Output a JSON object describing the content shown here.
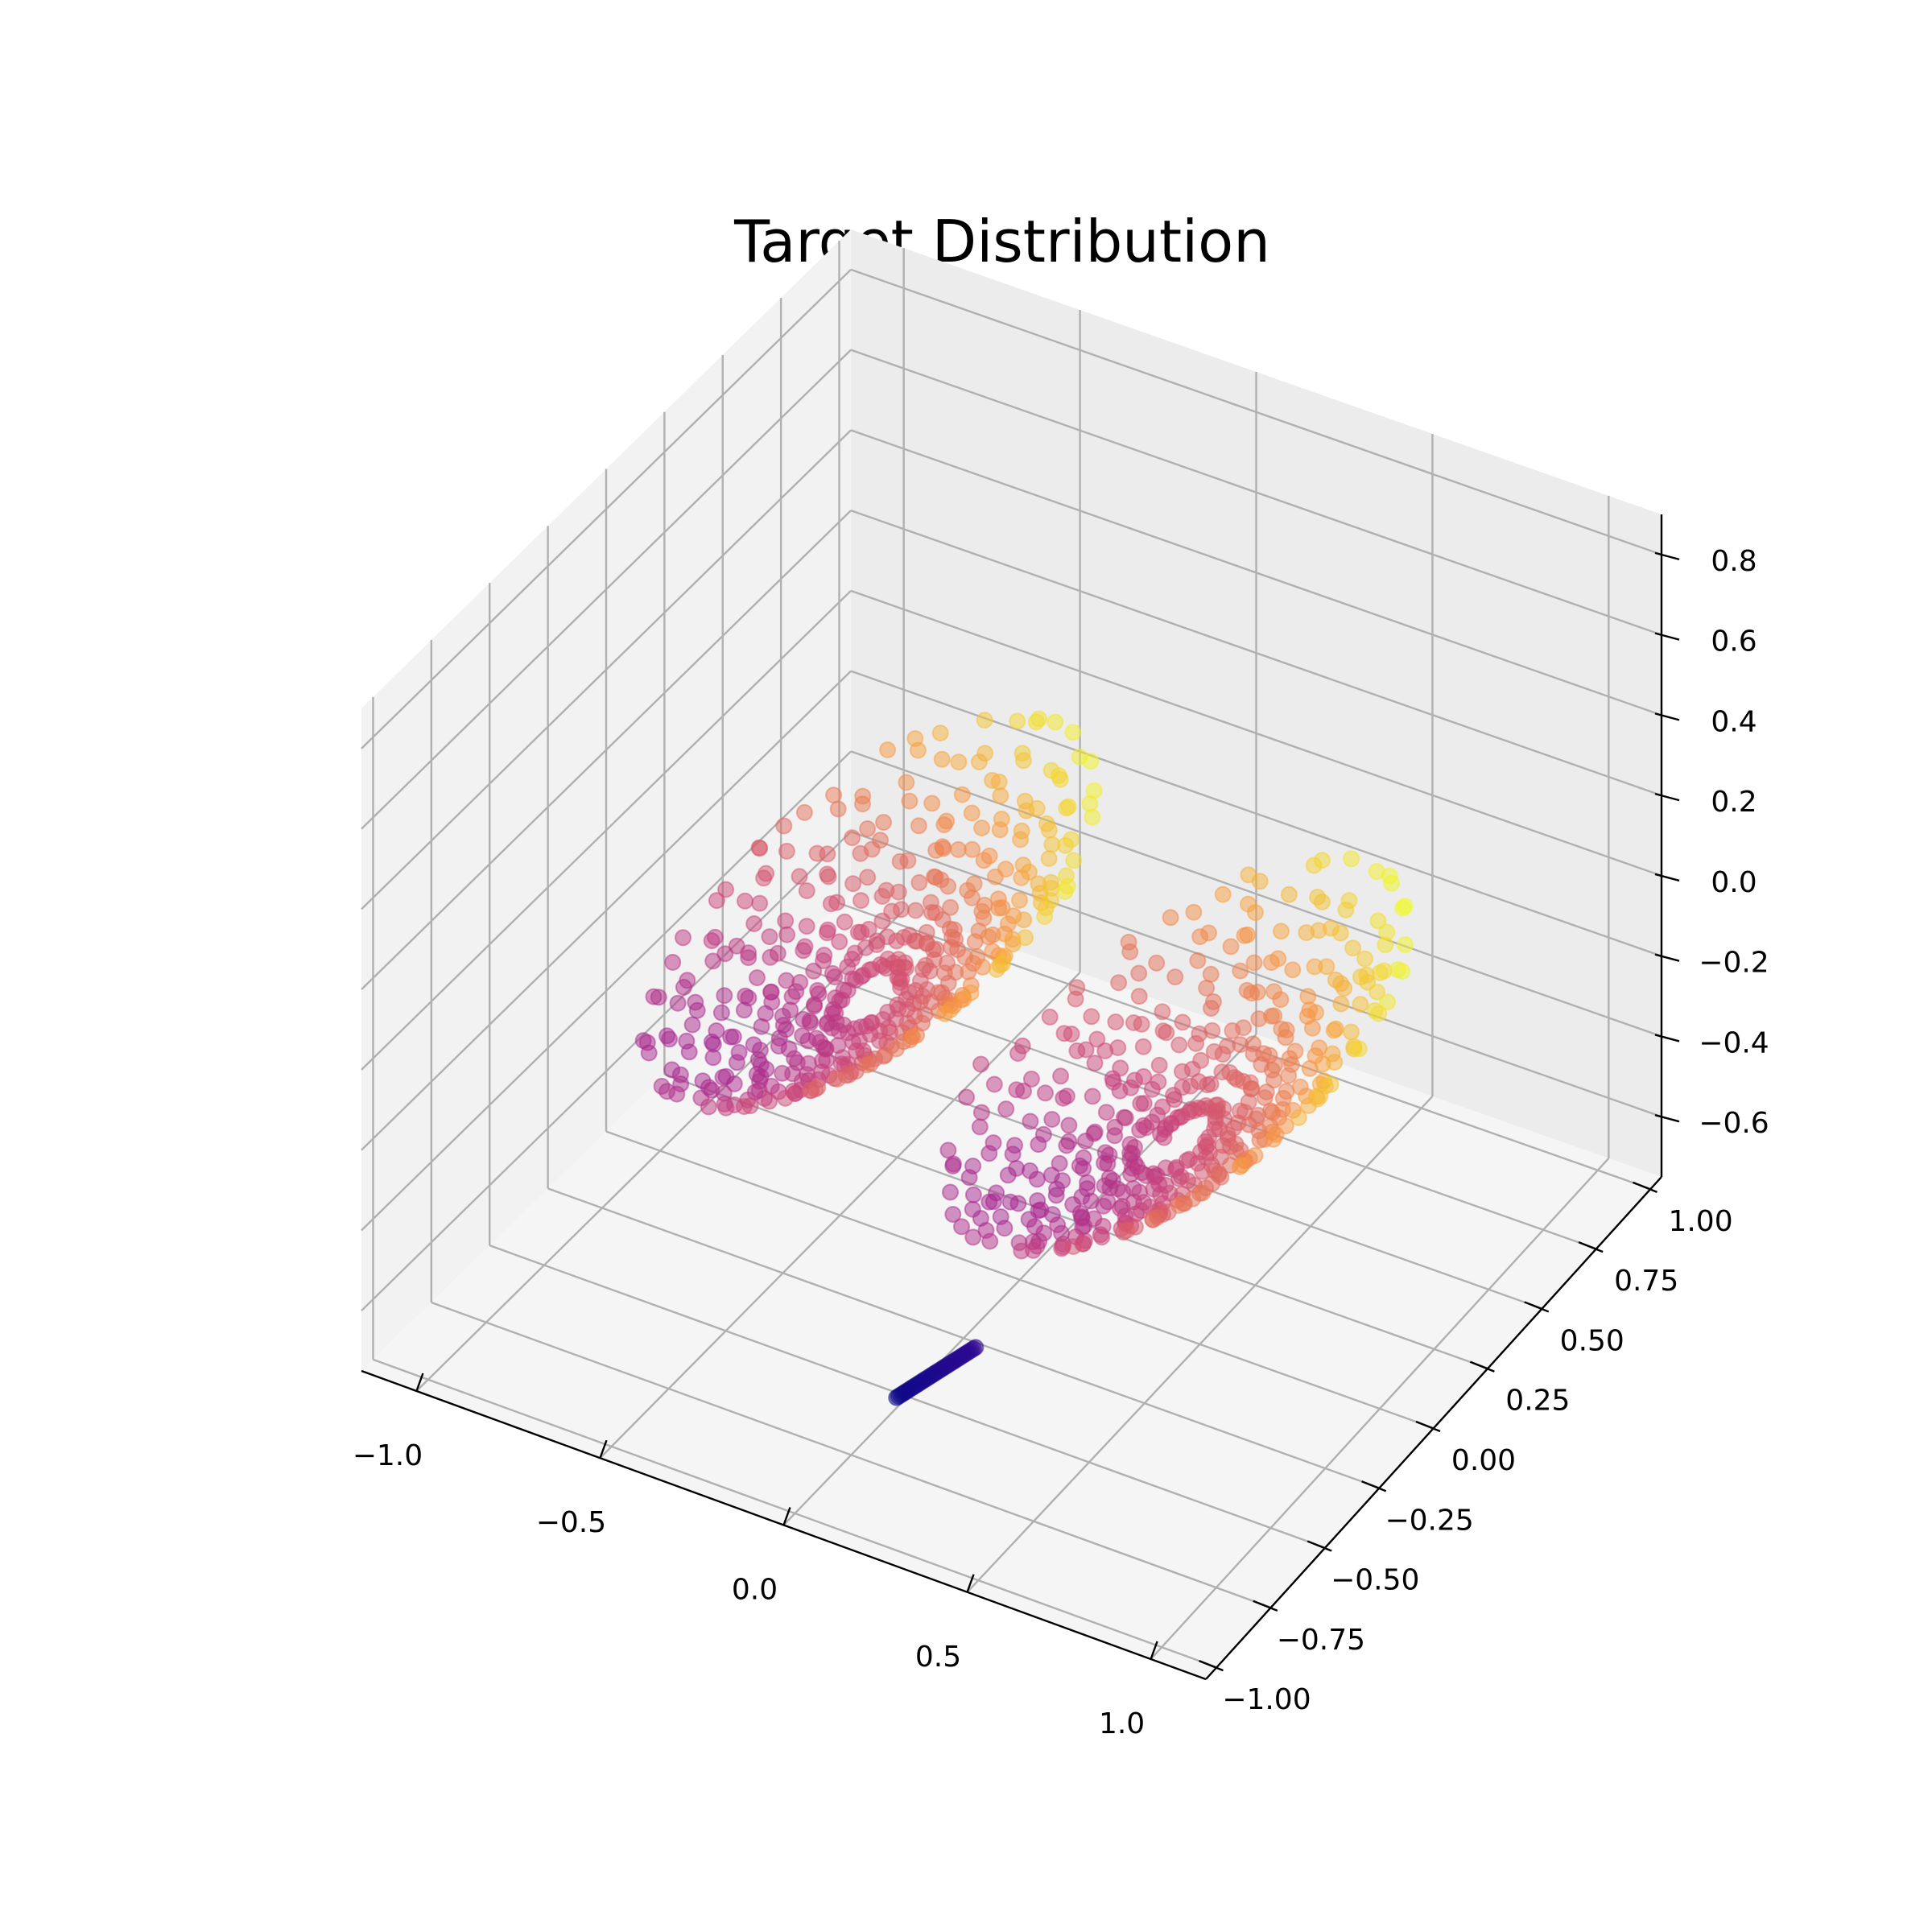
{
  "chart_data": {
    "type": "scatter",
    "projection": "3d",
    "title": "Target Distribution",
    "xlabel": "",
    "ylabel": "",
    "zlabel": "",
    "xlim": [
      -1.15,
      1.15
    ],
    "ylim": [
      -1.05,
      1.05
    ],
    "zlim": [
      -0.75,
      0.9
    ],
    "x_ticks": [
      "−1.0",
      "−0.5",
      "0.0",
      "0.5",
      "1.0"
    ],
    "y_ticks": [
      "−1.00",
      "−0.75",
      "−0.50",
      "−0.25",
      "0.00",
      "0.25",
      "0.50",
      "0.75",
      "1.00"
    ],
    "z_ticks": [
      "−0.6",
      "−0.4",
      "−0.2",
      "0.0",
      "0.2",
      "0.4",
      "0.6",
      "0.8"
    ],
    "grid": true,
    "colormap": "plasma",
    "color_by": "z",
    "marker_alpha": 0.5,
    "description_of_shape": "Lorenz-attractor-like double spiral",
    "series": [
      {
        "name": "",
        "points_count": 900,
        "lobes": [
          {
            "center": [
              -0.45,
              0.05,
              -0.05
            ],
            "radius_range": [
              0.05,
              0.6
            ]
          },
          {
            "center": [
              0.45,
              -0.05,
              -0.05
            ],
            "radius_range": [
              0.05,
              0.6
            ]
          }
        ]
      }
    ]
  }
}
